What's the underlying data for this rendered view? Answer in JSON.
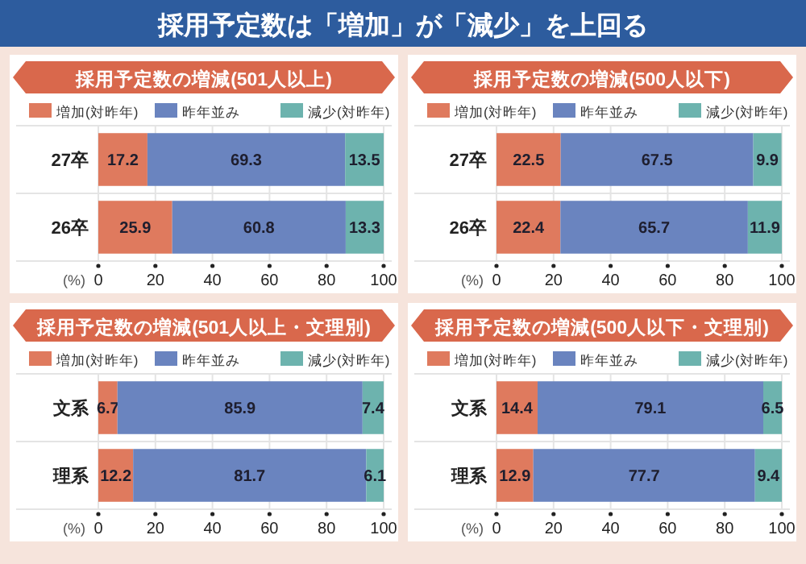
{
  "chart_data": [
    {
      "type": "bar",
      "title": "採用予定数は「増加」が「減少」を上回る",
      "subtitle": "採用予定数の増減(501人以上)",
      "xlabel": "(%)",
      "categories": [
        "27卒",
        "26卒"
      ],
      "stacked": true,
      "orientation": "horizontal",
      "xlim": [
        0,
        100
      ],
      "xticks": [
        0,
        20,
        40,
        60,
        80,
        100
      ],
      "grid": "x",
      "legend": "top",
      "data_labels": true,
      "series": [
        {
          "name": "増加(対昨年)",
          "color": "#df7a5e",
          "values": [
            17.2,
            25.9
          ]
        },
        {
          "name": "昨年並み",
          "color": "#6a84bf",
          "values": [
            69.3,
            60.8
          ]
        },
        {
          "name": "減少(対昨年)",
          "color": "#6db3ae",
          "values": [
            13.5,
            13.3
          ]
        }
      ]
    },
    {
      "type": "bar",
      "title": "採用予定数の増減(500人以下)",
      "xlabel": "(%)",
      "categories": [
        "27卒",
        "26卒"
      ],
      "stacked": true,
      "orientation": "horizontal",
      "xlim": [
        0,
        100
      ],
      "xticks": [
        0,
        20,
        40,
        60,
        80,
        100
      ],
      "grid": "x",
      "legend": "top",
      "data_labels": true,
      "series": [
        {
          "name": "増加(対昨年)",
          "color": "#df7a5e",
          "values": [
            22.5,
            22.4
          ]
        },
        {
          "name": "昨年並み",
          "color": "#6a84bf",
          "values": [
            67.5,
            65.7
          ]
        },
        {
          "name": "減少(対昨年)",
          "color": "#6db3ae",
          "values": [
            9.9,
            11.9
          ]
        }
      ]
    },
    {
      "type": "bar",
      "title": "採用予定数の増減(501人以上・文理別)",
      "xlabel": "(%)",
      "categories": [
        "文系",
        "理系"
      ],
      "stacked": true,
      "orientation": "horizontal",
      "xlim": [
        0,
        100
      ],
      "xticks": [
        0,
        20,
        40,
        60,
        80,
        100
      ],
      "grid": "x",
      "legend": "top",
      "data_labels": true,
      "series": [
        {
          "name": "増加(対昨年)",
          "color": "#df7a5e",
          "values": [
            6.7,
            12.2
          ]
        },
        {
          "name": "昨年並み",
          "color": "#6a84bf",
          "values": [
            85.9,
            81.7
          ]
        },
        {
          "name": "減少(対昨年)",
          "color": "#6db3ae",
          "values": [
            7.4,
            6.1
          ]
        }
      ]
    },
    {
      "type": "bar",
      "title": "採用予定数の増減(500人以下・文理別)",
      "xlabel": "(%)",
      "categories": [
        "文系",
        "理系"
      ],
      "stacked": true,
      "orientation": "horizontal",
      "xlim": [
        0,
        100
      ],
      "xticks": [
        0,
        20,
        40,
        60,
        80,
        100
      ],
      "grid": "x",
      "legend": "top",
      "data_labels": true,
      "series": [
        {
          "name": "増加(対昨年)",
          "color": "#df7a5e",
          "values": [
            14.4,
            12.9
          ]
        },
        {
          "name": "昨年並み",
          "color": "#6a84bf",
          "values": [
            79.1,
            77.7
          ]
        },
        {
          "name": "減少(対昨年)",
          "color": "#6db3ae",
          "values": [
            6.5,
            9.4
          ]
        }
      ]
    }
  ]
}
